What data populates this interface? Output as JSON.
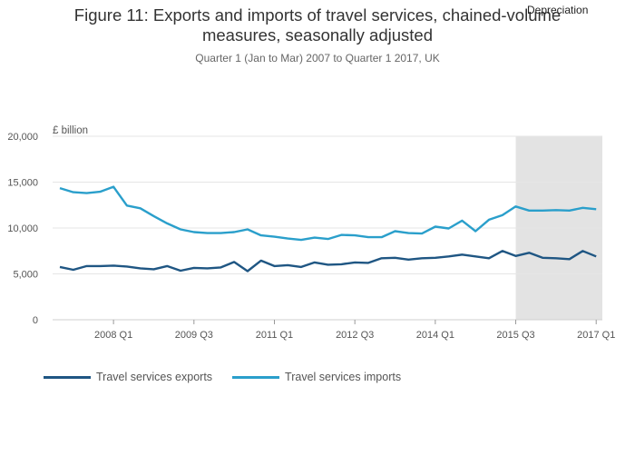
{
  "chart_data": {
    "type": "line",
    "title_line1": "Figure 11: Exports and imports of travel services, chained-volume",
    "title_line2": "measures, seasonally adjusted",
    "subtitle": "Quarter 1 (Jan to Mar) 2007 to Quarter 1 2017, UK",
    "ylabel": "£ billion",
    "ylim": [
      0,
      20000
    ],
    "yticks": [
      "0",
      "5,000",
      "10,000",
      "15,000",
      "20,000"
    ],
    "ytick_values": [
      0,
      5000,
      10000,
      15000,
      20000
    ],
    "xtick_labels": [
      "2008 Q1",
      "2009 Q3",
      "2011 Q1",
      "2012 Q3",
      "2014 Q1",
      "2015 Q3",
      "2017 Q1"
    ],
    "xtick_indices": [
      4,
      10,
      16,
      22,
      28,
      34,
      40
    ],
    "x_count": 41,
    "shaded_region": {
      "label": "Depreciation",
      "start_index": 34,
      "end_index": 40.4
    },
    "series": [
      {
        "name": "Travel services exports",
        "color": "#1f5683",
        "values": [
          5750,
          5450,
          5850,
          5850,
          5900,
          5800,
          5600,
          5500,
          5850,
          5350,
          5650,
          5600,
          5700,
          6300,
          5300,
          6450,
          5850,
          5950,
          5750,
          6250,
          6000,
          6050,
          6250,
          6200,
          6700,
          6750,
          6550,
          6700,
          6750,
          6900,
          7100,
          6900,
          6700,
          7500,
          6950,
          7300,
          6750,
          6700,
          6600,
          7500,
          6900
        ]
      },
      {
        "name": "Travel services imports",
        "color": "#2a9fcb",
        "values": [
          14350,
          13900,
          13800,
          13950,
          14500,
          12450,
          12150,
          11300,
          10500,
          9850,
          9550,
          9450,
          9450,
          9550,
          9850,
          9200,
          9050,
          8850,
          8700,
          8950,
          8800,
          9250,
          9200,
          9000,
          9000,
          9650,
          9450,
          9400,
          10150,
          9950,
          10800,
          9650,
          10900,
          11400,
          12350,
          11900,
          11900,
          11950,
          11900,
          12200,
          12050
        ]
      }
    ]
  }
}
